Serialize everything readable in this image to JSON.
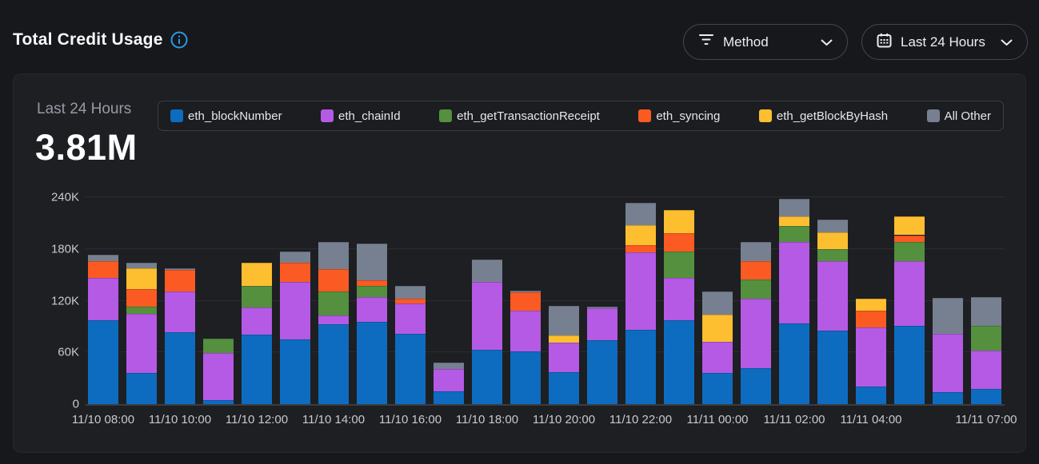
{
  "header": {
    "title": "Total Credit Usage",
    "method_filter": {
      "label": "Method"
    },
    "time_range": {
      "label": "Last 24 Hours"
    }
  },
  "panel": {
    "range_label": "Last 24 Hours",
    "total": "3.81M"
  },
  "theme": {
    "page_bg": "#17181b",
    "card_bg": "#1d1f23",
    "legend_bg": "#1b1d21",
    "accent_info": "#2a9ae4",
    "tick_color": "#c6c9cf"
  },
  "chart_data": {
    "type": "bar",
    "stacked": true,
    "title": "Total Credit Usage",
    "total_label": "3.81M",
    "ylim": [
      0,
      240000
    ],
    "values_unit": "thousands of credits",
    "grid": true,
    "legend_position": "top",
    "yticks": [
      {
        "value": 0,
        "label": "0"
      },
      {
        "value": 60,
        "label": "60K"
      },
      {
        "value": 120,
        "label": "120K"
      },
      {
        "value": 180,
        "label": "180K"
      },
      {
        "value": 240,
        "label": "240K"
      }
    ],
    "bar_count": 24,
    "xticks": [
      {
        "bar": 0,
        "label": "11/10 08:00"
      },
      {
        "bar": 2,
        "label": "11/10 10:00"
      },
      {
        "bar": 4,
        "label": "11/10 12:00"
      },
      {
        "bar": 6,
        "label": "11/10 14:00"
      },
      {
        "bar": 8,
        "label": "11/10 16:00"
      },
      {
        "bar": 10,
        "label": "11/10 18:00"
      },
      {
        "bar": 12,
        "label": "11/10 20:00"
      },
      {
        "bar": 14,
        "label": "11/10 22:00"
      },
      {
        "bar": 16,
        "label": "11/11 00:00"
      },
      {
        "bar": 18,
        "label": "11/11 02:00"
      },
      {
        "bar": 20,
        "label": "11/11 04:00"
      },
      {
        "bar": 23,
        "label": "11/11 07:00"
      }
    ],
    "series": [
      {
        "name": "eth_blockNumber",
        "color": "#0d6cc0",
        "values": [
          97,
          36,
          83,
          5,
          81,
          75,
          93,
          95,
          82,
          15,
          63,
          61,
          37,
          74,
          86,
          97,
          36,
          42,
          94,
          85,
          20,
          91,
          14,
          18
        ]
      },
      {
        "name": "eth_chainId",
        "color": "#b45ae4",
        "values": [
          49,
          69,
          48,
          54,
          31,
          67,
          10,
          29,
          35,
          26,
          79,
          47,
          34,
          37,
          90,
          49,
          36,
          80,
          94,
          81,
          69,
          75,
          68,
          44
        ]
      },
      {
        "name": "eth_getTransactionReceipt",
        "color": "#54903e",
        "values": [
          0,
          8,
          0,
          17,
          25,
          0,
          28,
          13,
          0,
          0,
          0,
          0,
          0,
          0,
          0,
          31,
          0,
          23,
          19,
          14,
          0,
          22,
          0,
          29
        ]
      },
      {
        "name": "eth_syncing",
        "color": "#fb5a23",
        "values": [
          20,
          20,
          25,
          0,
          0,
          22,
          26,
          7,
          5,
          0,
          0,
          22,
          0,
          0,
          8,
          21,
          0,
          21,
          0,
          0,
          19,
          8,
          0,
          0
        ]
      },
      {
        "name": "eth_getBlockByHash",
        "color": "#fdbe30",
        "values": [
          0,
          25,
          0,
          0,
          27,
          0,
          0,
          0,
          0,
          0,
          0,
          0,
          9,
          0,
          24,
          27,
          32,
          0,
          11,
          19,
          14,
          22,
          0,
          0
        ]
      },
      {
        "name": "All Other",
        "color": "#778090",
        "values": [
          7,
          6,
          2,
          0,
          0,
          13,
          31,
          42,
          15,
          7,
          26,
          2,
          34,
          2,
          26,
          0,
          27,
          22,
          20,
          15,
          0,
          0,
          41,
          33
        ]
      }
    ]
  }
}
